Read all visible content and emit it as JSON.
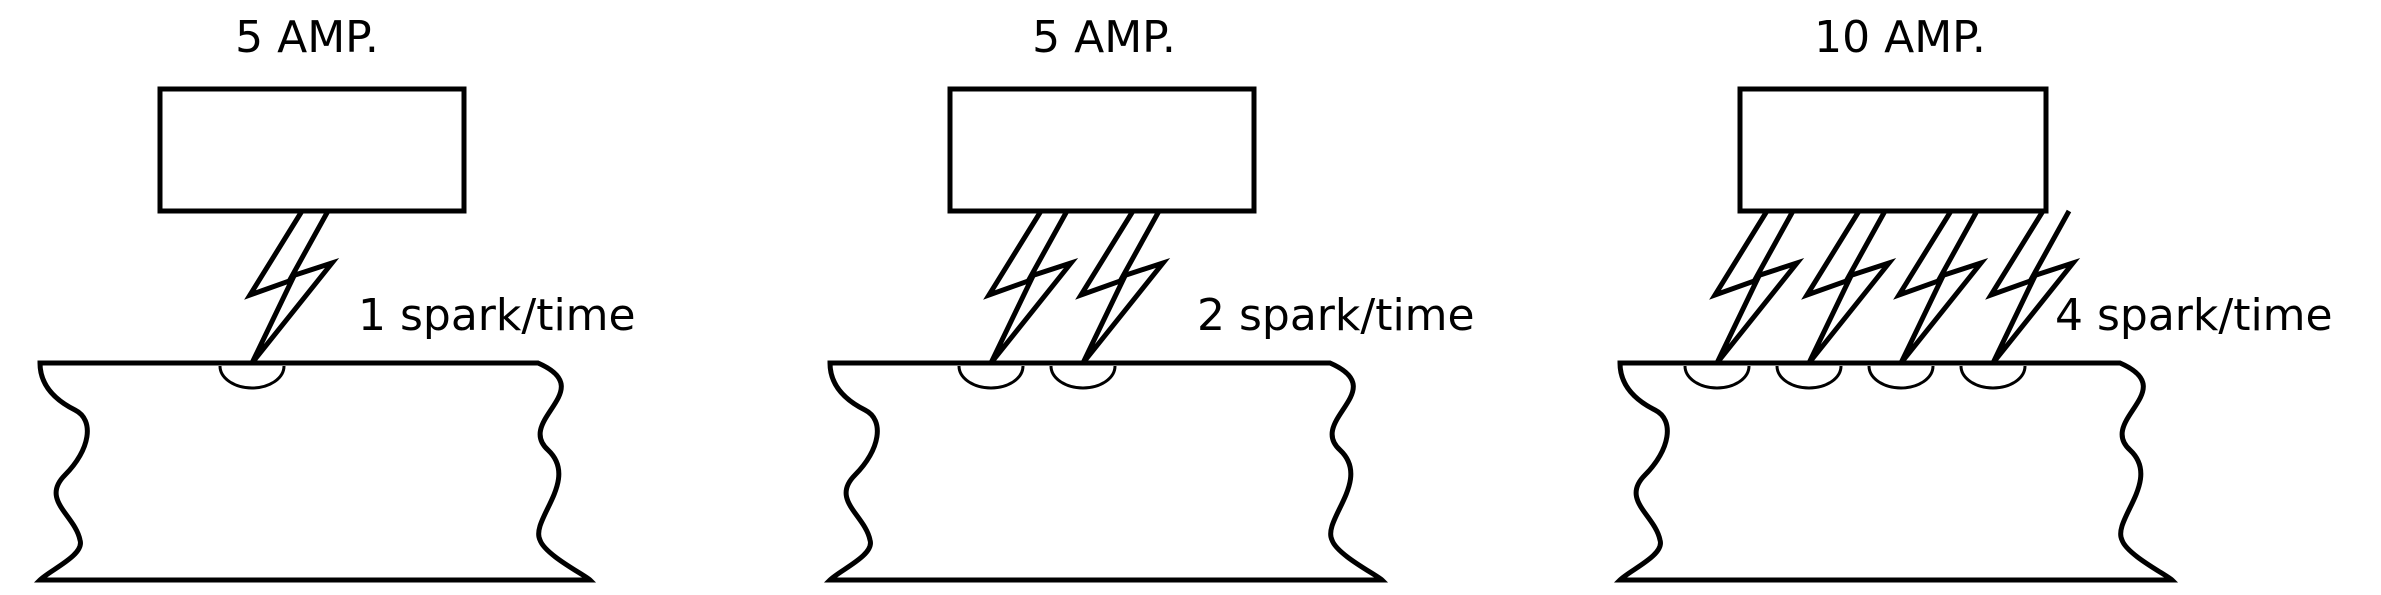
{
  "panels": [
    {
      "current_label": "5 AMP.",
      "spark_label": "1 spark/time",
      "spark_count": 1
    },
    {
      "current_label": "5 AMP.",
      "spark_label": "2 spark/time",
      "spark_count": 2
    },
    {
      "current_label": "10 AMP.",
      "spark_label": "4 spark/time",
      "spark_count": 4
    }
  ],
  "colors": {
    "stroke": "#000000",
    "background": "#ffffff"
  }
}
